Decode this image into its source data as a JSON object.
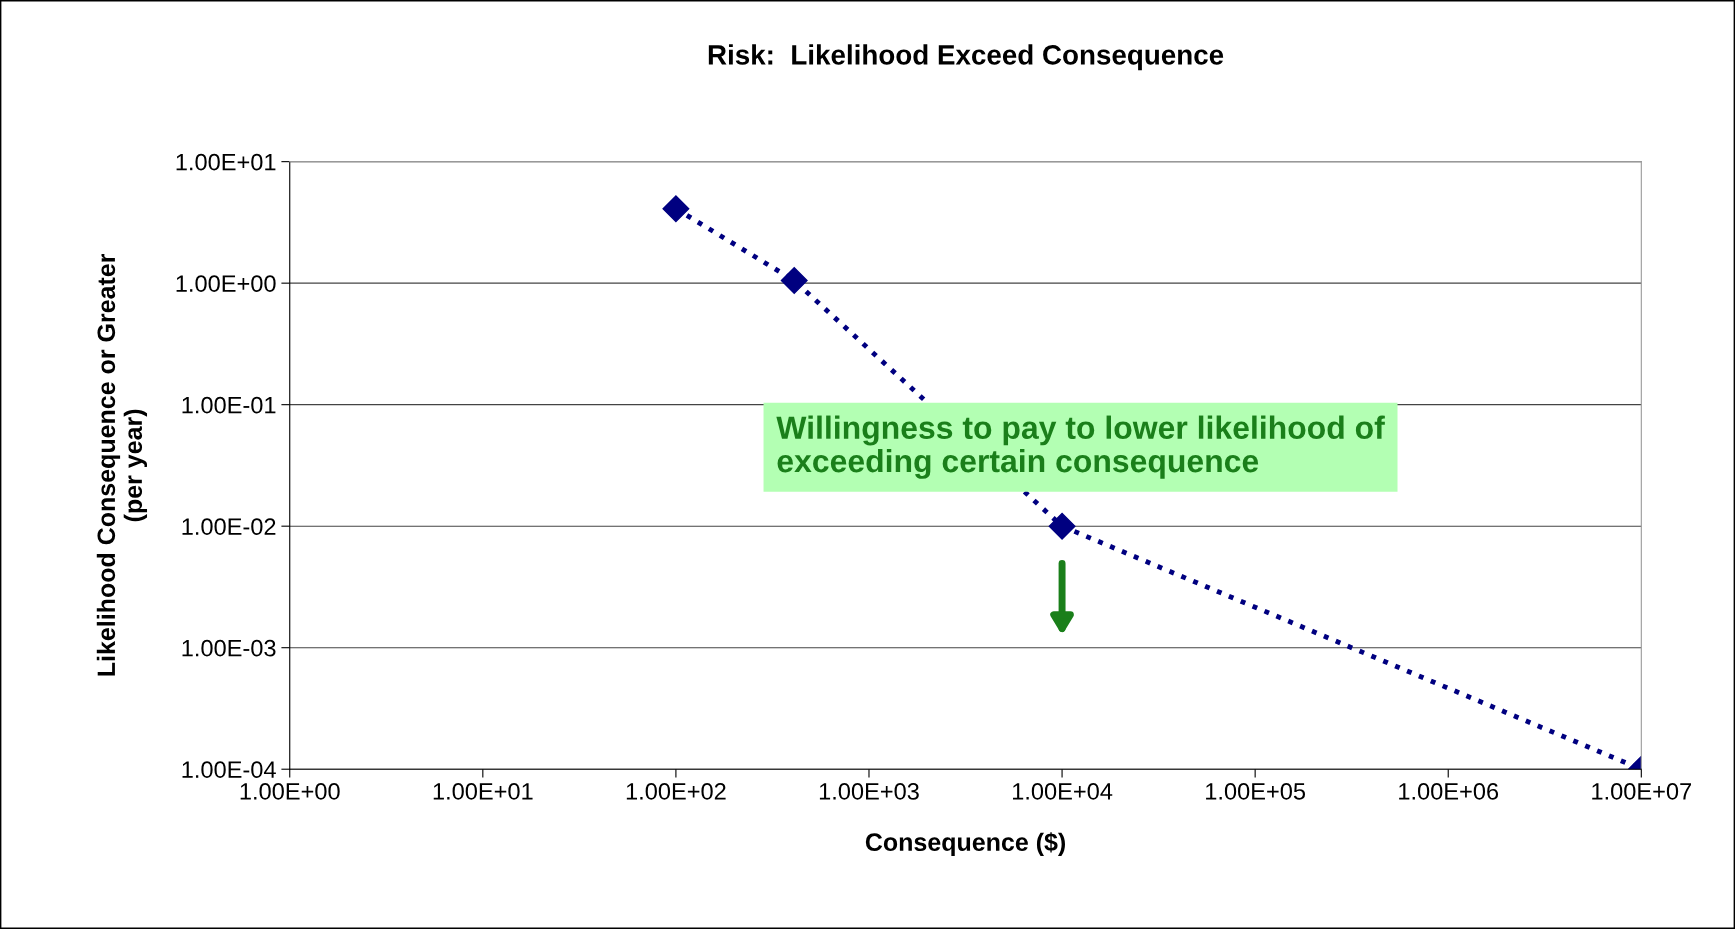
{
  "chart_data": {
    "type": "line",
    "title": "Risk:  Likelihood Exceed Consequence",
    "xlabel": "Consequence ($)",
    "ylabel": "Likelihood Consequence or Greater\n(per year)",
    "x": [
      100,
      410,
      10000,
      10000000
    ],
    "series": [
      {
        "color": "#000080",
        "values": [
          4.1,
          1.05,
          0.01,
          0.0001
        ]
      }
    ],
    "log": "xy",
    "marker": "diamond",
    "line_style": "dotted",
    "grid": "y",
    "legend": false,
    "xlim": [
      1,
      10000000
    ],
    "ylim": [
      0.0001,
      10
    ],
    "xticks": [
      {
        "value": 1,
        "label": "1.00E+00"
      },
      {
        "value": 10,
        "label": "1.00E+01"
      },
      {
        "value": 100,
        "label": "1.00E+02"
      },
      {
        "value": 1000,
        "label": "1.00E+03"
      },
      {
        "value": 10000,
        "label": "1.00E+04"
      },
      {
        "value": 100000,
        "label": "1.00E+05"
      },
      {
        "value": 1000000,
        "label": "1.00E+06"
      },
      {
        "value": 10000000,
        "label": "1.00E+07"
      }
    ],
    "yticks": [
      {
        "value": 0.0001,
        "label": "1.00E-04"
      },
      {
        "value": 0.001,
        "label": "1.00E-03"
      },
      {
        "value": 0.01,
        "label": "1.00E-02"
      },
      {
        "value": 0.1,
        "label": "1.00E-01"
      },
      {
        "value": 1,
        "label": "1.00E+00"
      },
      {
        "value": 10,
        "label": "1.00E+01"
      }
    ],
    "annotations": [
      {
        "text": "Willingness to pay to lower likelihood of\nexceeding certain consequence",
        "x": 10000,
        "y": 0.01
      }
    ]
  }
}
